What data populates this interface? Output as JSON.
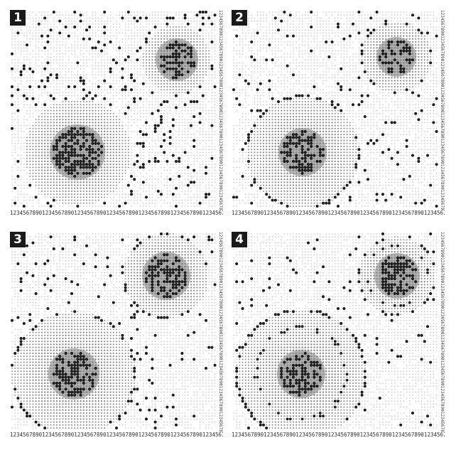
{
  "panels": [
    {
      "label": "1",
      "x_scale": "1234567890123456789012345678901234567890123456789012345678901234567890",
      "y_scale": "123456789012345678901234567890123456789012345678901234567890123456789012345678901234567890"
    },
    {
      "label": "2",
      "x_scale": "1234567890123456789012345678901234567890123456789012345678901234567890",
      "y_scale": "123456789012345678901234567890123456789012345678901234567890123456789012345678901234567890"
    },
    {
      "label": "3",
      "x_scale": "1234567890123456789012345678901234567890123456789012345678901234567890",
      "y_scale": "123456789012345678901234567890123456789012345678901234567890123456789012345678901234567890"
    },
    {
      "label": "4",
      "x_scale": "1234567890123456789012345678901234567890123456789012345678901234567890",
      "y_scale": "123456789012345678901234567890123456789012345678901234567890123456789012345678901234567890"
    }
  ],
  "colors": {
    "background_dot": "#c4c4c4",
    "cluster_dot": "#8e8e8e",
    "core_fill": "#808080",
    "active_dot": "#1c1c1c",
    "badge": "#1a1a1a"
  }
}
